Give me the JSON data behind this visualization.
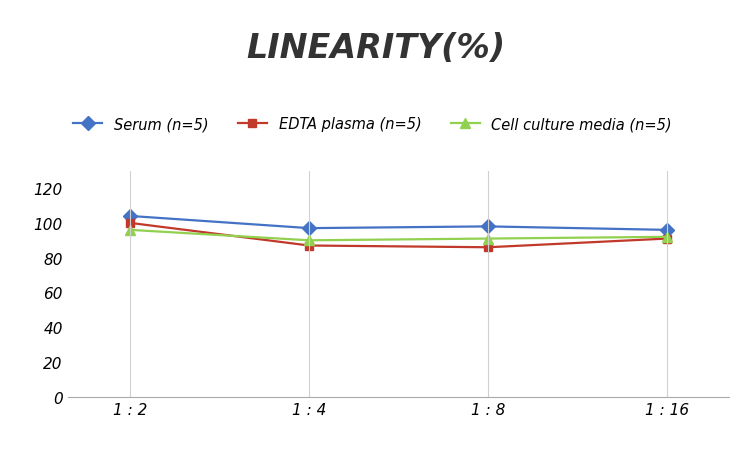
{
  "title": "LINEARITY(%)",
  "x_labels": [
    "1 : 2",
    "1 : 4",
    "1 : 8",
    "1 : 16"
  ],
  "x_positions": [
    0,
    1,
    2,
    3
  ],
  "series": [
    {
      "label": "Serum (n=5)",
      "values": [
        104,
        97,
        98,
        96
      ],
      "color": "#4472C4",
      "marker": "D",
      "markersize": 7,
      "linewidth": 1.6
    },
    {
      "label": "EDTA plasma (n=5)",
      "values": [
        100,
        87,
        86,
        91
      ],
      "color": "#C0392B",
      "marker": "s",
      "markersize": 6,
      "linewidth": 1.6
    },
    {
      "label": "Cell culture media (n=5)",
      "values": [
        96,
        90,
        91,
        92
      ],
      "color": "#92D050",
      "marker": "^",
      "markersize": 7,
      "linewidth": 1.6
    }
  ],
  "ylim": [
    0,
    130
  ],
  "yticks": [
    0,
    20,
    40,
    60,
    80,
    100,
    120
  ],
  "grid_color": "#d0d0d0",
  "background_color": "#ffffff",
  "title_fontsize": 24,
  "title_fontstyle": "italic",
  "title_fontweight": "bold",
  "legend_fontsize": 10.5,
  "tick_fontsize": 11
}
